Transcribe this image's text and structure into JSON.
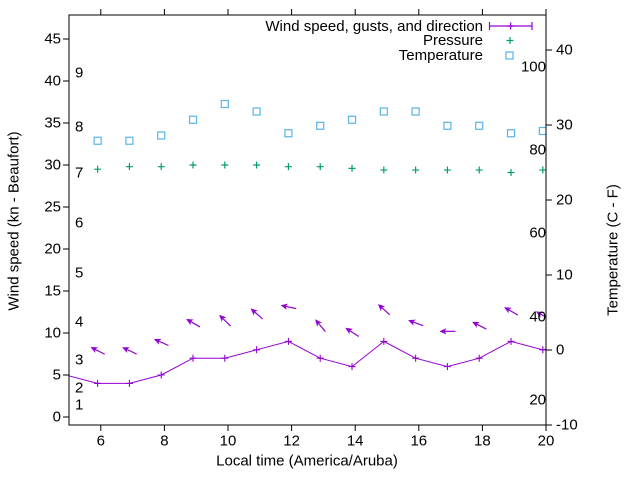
{
  "axes": {
    "x": {
      "label": "Local time (America/Aruba)",
      "min": 5,
      "max": 20,
      "ticks": [
        6,
        8,
        10,
        12,
        14,
        16,
        18,
        20
      ]
    },
    "y_left": {
      "label": "Wind speed (kn - Beaufort)",
      "kn_ticks": [
        0,
        5,
        10,
        15,
        20,
        25,
        30,
        35,
        40,
        45
      ],
      "beaufort_labels": [
        {
          "b": "1",
          "kn": 1.4
        },
        {
          "b": "2",
          "kn": 3.5
        },
        {
          "b": "3",
          "kn": 6.8
        },
        {
          "b": "4",
          "kn": 11.3
        },
        {
          "b": "5",
          "kn": 17.1
        },
        {
          "b": "6",
          "kn": 23.1
        },
        {
          "b": "7",
          "kn": 29.0
        },
        {
          "b": "8",
          "kn": 34.5
        },
        {
          "b": "9",
          "kn": 41.0
        }
      ]
    },
    "y_right": {
      "label": "Temperature (C - F)",
      "c_ticks": [
        -10,
        0,
        10,
        20,
        30,
        40
      ],
      "f_inner_labels": [
        20,
        40,
        60,
        80,
        100
      ]
    }
  },
  "legend": [
    {
      "label": "Wind speed, gusts, and direction",
      "color": "#9400d3",
      "sample": "errorbar-line"
    },
    {
      "label": "Pressure",
      "color": "#009e73",
      "sample": "plus"
    },
    {
      "label": "Temperature",
      "color": "#56b4e9",
      "sample": "square"
    }
  ],
  "colors": {
    "wind": "#9400d3",
    "pressure": "#009e73",
    "temperature": "#56b4e9",
    "frame": "#000000",
    "background": "#ffffff"
  },
  "chart_data": {
    "type": "line",
    "title": "",
    "xlabel": "Local time (America/Aruba)",
    "ylabel_left": "Wind speed (kn - Beaufort)",
    "ylabel_right": "Temperature (C - F)",
    "x_range": [
      5,
      20
    ],
    "x_ticks": [
      6,
      8,
      10,
      12,
      14,
      16,
      18,
      20
    ],
    "y_left_range_kn": [
      -1,
      47.6
    ],
    "y_right_range_C": [
      -10,
      44.4
    ],
    "hours": [
      5.9,
      6.9,
      7.9,
      8.9,
      9.9,
      10.9,
      11.9,
      12.9,
      13.9,
      14.9,
      15.9,
      16.9,
      17.9,
      18.9,
      19.9
    ],
    "wind_speed_kn": {
      "name": "Wind speed (kn)",
      "color": "#9400d3",
      "x": [
        4.9,
        5.9,
        6.9,
        7.9,
        8.9,
        9.9,
        10.9,
        11.9,
        12.9,
        13.9,
        14.9,
        15.9,
        16.9,
        17.9,
        18.9,
        19.9,
        20.9
      ],
      "values": [
        5,
        4,
        4,
        5,
        7,
        7,
        8,
        9,
        7,
        6,
        9,
        7,
        6,
        7,
        9,
        8,
        9
      ]
    },
    "wind_gusts_kn": {
      "name": "Wind gusts (kn), arrow shows direction",
      "color": "#9400d3",
      "values": [
        7.9,
        7.9,
        8.9,
        11.2,
        11.5,
        12.3,
        13.1,
        10.9,
        10.1,
        12.8,
        11.2,
        10.2,
        10.9,
        12.6,
        12.1
      ],
      "arrow_angle_deg": [
        -153,
        -155,
        -156,
        -150,
        -135,
        -139,
        -168,
        -130,
        -147,
        -138,
        -160,
        180,
        -153,
        -150,
        -150
      ]
    },
    "pressure": {
      "name": "Pressure (plotted against left axis, inHg)",
      "color": "#009e73",
      "values": [
        29.5,
        29.8,
        29.8,
        30.0,
        30.0,
        30.0,
        29.8,
        29.8,
        29.6,
        29.4,
        29.4,
        29.4,
        29.4,
        29.1,
        29.4
      ]
    },
    "temperature_C": {
      "name": "Temperature (C)",
      "color": "#56b4e9",
      "values": [
        27.9,
        27.9,
        28.6,
        30.7,
        32.8,
        31.8,
        28.9,
        29.9,
        30.7,
        31.8,
        31.8,
        29.9,
        29.9,
        28.9,
        29.2
      ]
    },
    "legend_entries": [
      "Wind speed, gusts, and direction",
      "Pressure",
      "Temperature"
    ],
    "legend_position": "top-right-inside",
    "grid": false
  }
}
